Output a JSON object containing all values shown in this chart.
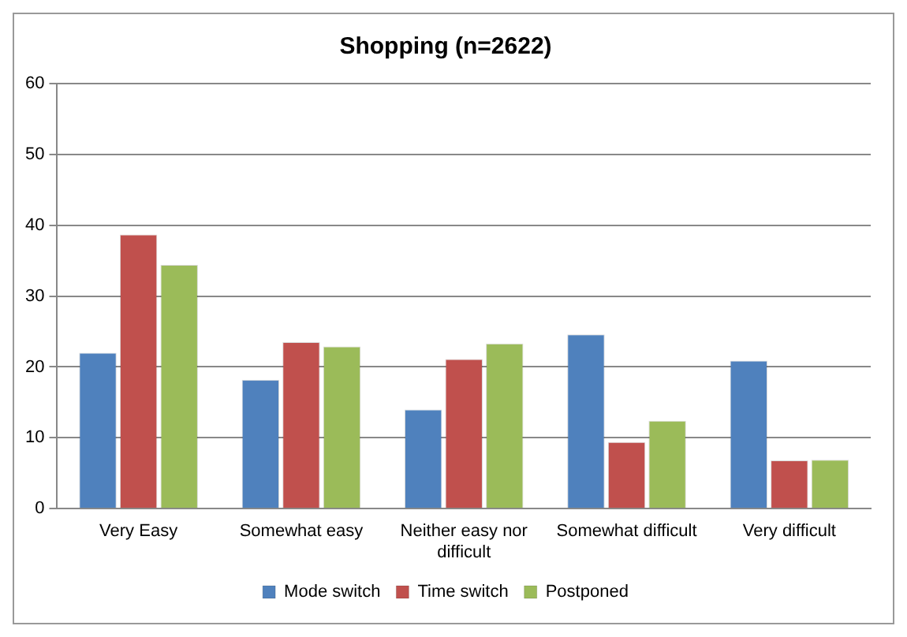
{
  "chart_data": {
    "type": "bar",
    "title": "Shopping (n=2622)",
    "categories": [
      "Very Easy",
      "Somewhat easy",
      "Neither easy nor difficult",
      "Somewhat difficult",
      "Very difficult"
    ],
    "series": [
      {
        "name": "Mode switch",
        "color": "#4f81bd",
        "values": [
          22,
          18.2,
          14,
          24.6,
          20.9
        ]
      },
      {
        "name": "Time switch",
        "color": "#c0504d",
        "values": [
          38.7,
          23.5,
          21.1,
          9.4,
          6.8
        ]
      },
      {
        "name": "Postponed",
        "color": "#9bbb59",
        "values": [
          34.4,
          22.9,
          23.3,
          12.4,
          6.9
        ]
      }
    ],
    "ylim": [
      0,
      60
    ],
    "yticks": [
      0,
      10,
      20,
      30,
      40,
      50,
      60
    ],
    "grid": "y",
    "legend": "bottom"
  }
}
